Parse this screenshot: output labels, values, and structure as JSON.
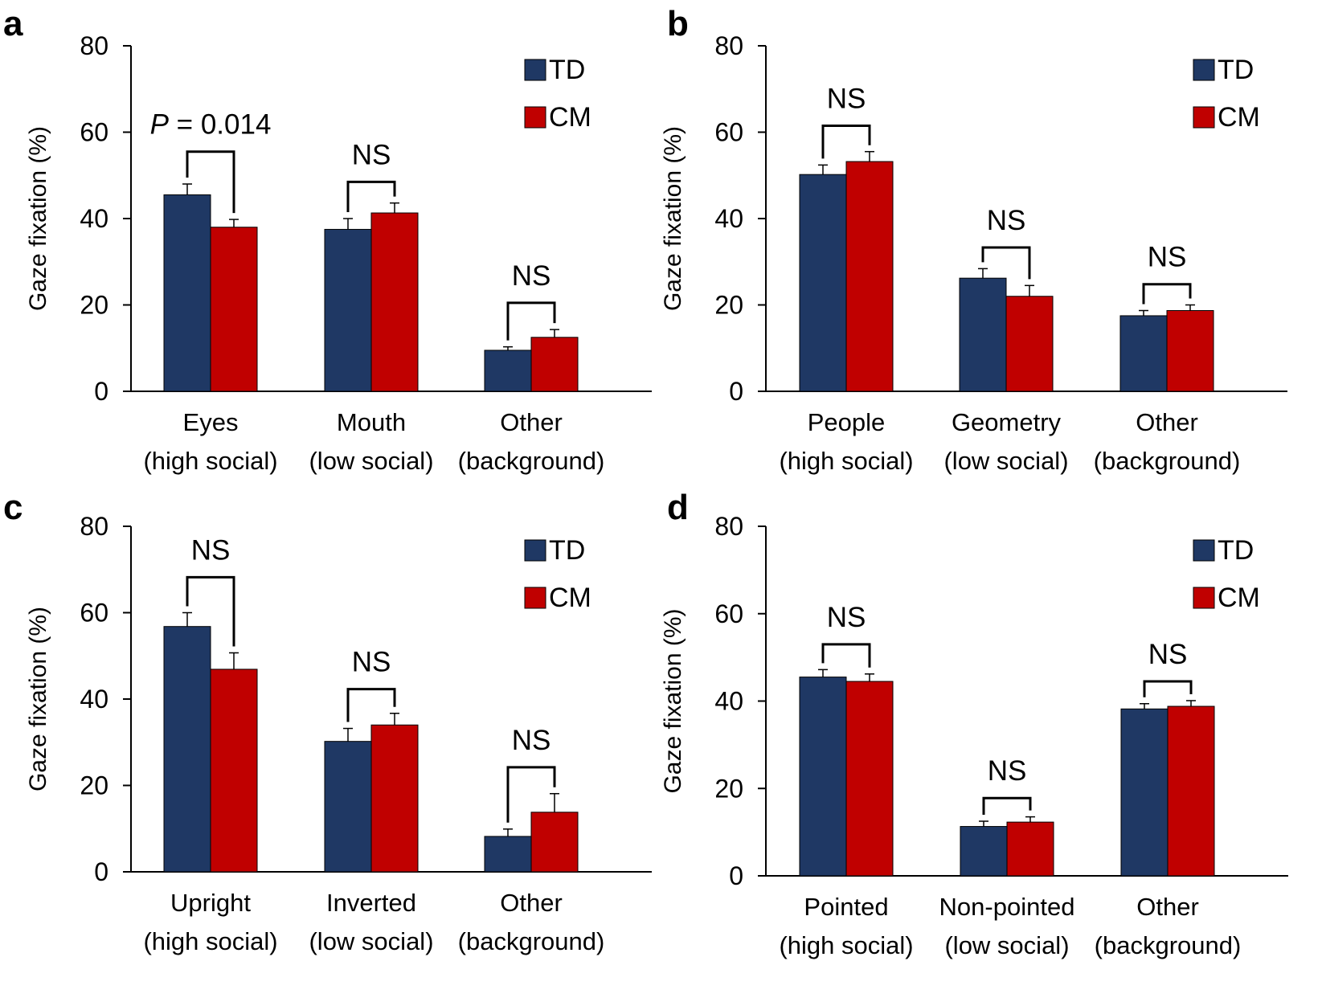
{
  "chart_data": [
    {
      "id": "a",
      "panel_letter": "a",
      "type": "bar",
      "ylabel": "Gaze fixation (%)",
      "ylim": [
        0,
        80
      ],
      "yticks": [
        "0",
        "20",
        "40",
        "60",
        "80"
      ],
      "categories": [
        {
          "line1": "Eyes",
          "line2": "(high social)"
        },
        {
          "line1": "Mouth",
          "line2": "(low social)"
        },
        {
          "line1": "Other",
          "line2": "(background)"
        }
      ],
      "series": [
        {
          "name": "TD",
          "color": "#1f3864",
          "values": [
            45.5,
            37.5,
            9.5
          ],
          "errors": [
            2.5,
            2.5,
            0.8
          ]
        },
        {
          "name": "CM",
          "color": "#c00000",
          "values": [
            38,
            41.3,
            12.5
          ],
          "errors": [
            1.8,
            2.3,
            1.8
          ]
        }
      ],
      "annotations": [
        {
          "italic": "P",
          "text": " = 0.014"
        },
        {
          "italic": "",
          "text": "NS"
        },
        {
          "italic": "",
          "text": "NS"
        }
      ],
      "bracket_heights": [
        55.5,
        48.5,
        20.5
      ],
      "legend": "top-right"
    },
    {
      "id": "b",
      "panel_letter": "b",
      "type": "bar",
      "ylabel": "Gaze fixation (%)",
      "ylim": [
        0,
        80
      ],
      "yticks": [
        "0",
        "20",
        "40",
        "60",
        "80"
      ],
      "categories": [
        {
          "line1": "People",
          "line2": "(high social)"
        },
        {
          "line1": "Geometry",
          "line2": "(low social)"
        },
        {
          "line1": "Other",
          "line2": "(background)"
        }
      ],
      "series": [
        {
          "name": "TD",
          "color": "#1f3864",
          "values": [
            50.2,
            26.2,
            17.5
          ],
          "errors": [
            2.2,
            2.2,
            1.2
          ]
        },
        {
          "name": "CM",
          "color": "#c00000",
          "values": [
            53.2,
            22,
            18.7
          ],
          "errors": [
            2.3,
            2.5,
            1.3
          ]
        }
      ],
      "annotations": [
        {
          "italic": "",
          "text": "NS"
        },
        {
          "italic": "",
          "text": "NS"
        },
        {
          "italic": "",
          "text": "NS"
        }
      ],
      "bracket_heights": [
        61.5,
        33.3,
        24.8
      ],
      "legend": "top-right"
    },
    {
      "id": "c",
      "panel_letter": "c",
      "type": "bar",
      "ylabel": "Gaze fixation (%)",
      "ylim": [
        0,
        80
      ],
      "yticks": [
        "0",
        "20",
        "40",
        "60",
        "80"
      ],
      "categories": [
        {
          "line1": "Upright",
          "line2": "(high social)"
        },
        {
          "line1": "Inverted",
          "line2": "(low social)"
        },
        {
          "line1": "Other",
          "line2": "(background)"
        }
      ],
      "series": [
        {
          "name": "TD",
          "color": "#1f3864",
          "values": [
            56.8,
            30.2,
            8.2
          ],
          "errors": [
            3.2,
            3,
            1.7
          ]
        },
        {
          "name": "CM",
          "color": "#c00000",
          "values": [
            46.9,
            34,
            13.8
          ],
          "errors": [
            3.8,
            2.7,
            4.3
          ]
        }
      ],
      "annotations": [
        {
          "italic": "",
          "text": "NS"
        },
        {
          "italic": "",
          "text": "NS"
        },
        {
          "italic": "",
          "text": "NS"
        }
      ],
      "bracket_heights": [
        68.2,
        42.3,
        24.2
      ],
      "legend": "top-right"
    },
    {
      "id": "d",
      "panel_letter": "d",
      "type": "bar",
      "ylabel": "Gaze fixation (%)",
      "ylim": [
        0,
        80
      ],
      "yticks": [
        "0",
        "20",
        "40",
        "60",
        "80"
      ],
      "categories": [
        {
          "line1": "Pointed",
          "line2": "(high social)"
        },
        {
          "line1": "Non-pointed",
          "line2": "(low social)"
        },
        {
          "line1": "Other",
          "line2": "(background)"
        }
      ],
      "series": [
        {
          "name": "TD",
          "color": "#1f3864",
          "values": [
            45.5,
            11.3,
            38.2
          ],
          "errors": [
            1.7,
            1.2,
            1.2
          ]
        },
        {
          "name": "CM",
          "color": "#c00000",
          "values": [
            44.5,
            12.3,
            38.8
          ],
          "errors": [
            1.7,
            1.2,
            1.3
          ]
        }
      ],
      "annotations": [
        {
          "italic": "",
          "text": "NS"
        },
        {
          "italic": "",
          "text": "NS"
        },
        {
          "italic": "",
          "text": "NS"
        }
      ],
      "bracket_heights": [
        53,
        17.8,
        44.5
      ],
      "legend": "top-right"
    }
  ]
}
